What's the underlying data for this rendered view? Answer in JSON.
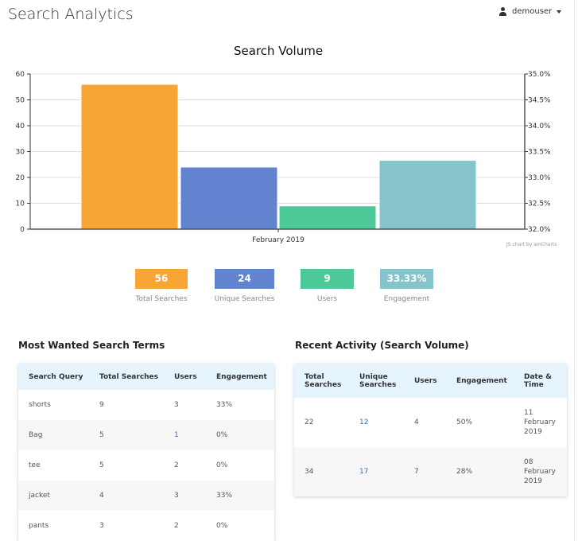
{
  "header": {
    "title": "Search Analytics",
    "user": "demouser",
    "user_icon": "user-icon"
  },
  "chart_data": {
    "type": "bar",
    "title": "Search Volume",
    "categories": [
      "February 2019"
    ],
    "series": [
      {
        "name": "Total Searches",
        "values": [
          56
        ],
        "axis": "left",
        "color": "#f7a635"
      },
      {
        "name": "Unique Searches",
        "values": [
          24
        ],
        "axis": "left",
        "color": "#6283cf"
      },
      {
        "name": "Users",
        "values": [
          9
        ],
        "axis": "left",
        "color": "#4dc997"
      },
      {
        "name": "Engagement",
        "values": [
          33.33
        ],
        "axis": "right",
        "color": "#84c4ca"
      }
    ],
    "ylim": [
      0,
      60
    ],
    "yticks": [
      "0",
      "10",
      "20",
      "30",
      "40",
      "50",
      "60"
    ],
    "y2lim": [
      32.0,
      35.0
    ],
    "y2ticks": [
      "32.0%",
      "32.5%",
      "33.0%",
      "33.5%",
      "34.0%",
      "34.5%",
      "35.0%"
    ],
    "grid": true,
    "credit": "JS chart by amCharts"
  },
  "kpis": [
    {
      "value": "56",
      "label": "Total Searches",
      "color": "#f7a635"
    },
    {
      "value": "24",
      "label": "Unique Searches",
      "color": "#6283cf"
    },
    {
      "value": "9",
      "label": "Users",
      "color": "#4dc997"
    },
    {
      "value": "33.33%",
      "label": "Engagement",
      "color": "#84c4ca"
    }
  ],
  "terms": {
    "title": "Most Wanted Search Terms",
    "headers": [
      "Search Query",
      "Total Searches",
      "Users",
      "Engagement"
    ],
    "rows": [
      [
        "shorts",
        "9",
        "3",
        "33%"
      ],
      [
        "Bag",
        "5",
        "1",
        "0%"
      ],
      [
        "tee",
        "5",
        "2",
        "0%"
      ],
      [
        "jacket",
        "4",
        "3",
        "33%"
      ],
      [
        "pants",
        "3",
        "2",
        "0%"
      ]
    ]
  },
  "activity": {
    "title": "Recent Activity (Search Volume)",
    "headers": [
      "Total Searches",
      "Unique Searches",
      "Users",
      "Engagement",
      "Date & Time"
    ],
    "rows": [
      [
        "22",
        "12",
        "4",
        "50%",
        "11 February 2019"
      ],
      [
        "34",
        "17",
        "7",
        "28%",
        "08 February 2019"
      ]
    ]
  }
}
